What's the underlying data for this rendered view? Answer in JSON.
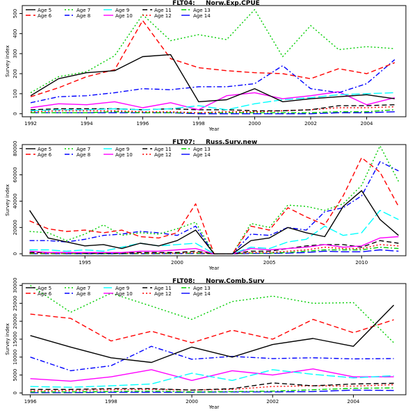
{
  "palette": {
    "Age 5": "#000000",
    "Age 6": "#ff0000",
    "Age 7": "#00cd00",
    "Age 8": "#0000ff",
    "Age 9": "#00ffff",
    "Age 10": "#ff00ff",
    "Age 11": "#000000",
    "Age 12": "#ff0000",
    "Age 13": "#00cd00",
    "Age 14": "#0000ff"
  },
  "chart_data": [
    {
      "type": "line",
      "fleet": "FLT04:",
      "name": "Norw.Exp.CPUE",
      "xlabel": "Year",
      "ylabel": "Survey index",
      "xlim": [
        1991.7,
        2005.4
      ],
      "ylim": [
        -15,
        540
      ],
      "xticks": [
        1992,
        1994,
        1996,
        1998,
        2000,
        2002,
        2004
      ],
      "yticks": [
        0,
        100,
        200,
        300,
        400,
        500
      ],
      "x": [
        1992,
        1993,
        1994,
        1995,
        1996,
        1997,
        1998,
        1999,
        2000,
        2001,
        2002,
        2003,
        2004,
        2005
      ],
      "series": [
        {
          "name": "Age 5",
          "values": [
            90,
            175,
            205,
            215,
            285,
            295,
            60,
            70,
            125,
            60,
            75,
            85,
            95,
            75
          ]
        },
        {
          "name": "Age 6",
          "values": [
            85,
            130,
            185,
            220,
            465,
            275,
            230,
            215,
            205,
            200,
            175,
            225,
            200,
            255
          ]
        },
        {
          "name": "Age 7",
          "values": [
            105,
            185,
            210,
            290,
            495,
            365,
            395,
            370,
            520,
            285,
            440,
            320,
            335,
            325
          ]
        },
        {
          "name": "Age 8",
          "values": [
            55,
            85,
            90,
            105,
            125,
            120,
            135,
            135,
            150,
            240,
            125,
            105,
            150,
            270
          ]
        },
        {
          "name": "Age 9",
          "values": [
            15,
            20,
            20,
            25,
            20,
            25,
            40,
            20,
            50,
            70,
            80,
            95,
            100,
            105
          ]
        },
        {
          "name": "Age 10",
          "values": [
            30,
            50,
            45,
            60,
            30,
            55,
            20,
            90,
            105,
            75,
            90,
            110,
            45,
            80
          ]
        },
        {
          "name": "Age 11",
          "values": [
            20,
            25,
            25,
            25,
            20,
            25,
            20,
            20,
            15,
            15,
            20,
            40,
            40,
            45
          ]
        },
        {
          "name": "Age 12",
          "values": [
            10,
            15,
            15,
            15,
            10,
            10,
            5,
            10,
            10,
            15,
            20,
            30,
            30,
            35
          ]
        },
        {
          "name": "Age 13",
          "values": [
            5,
            5,
            5,
            10,
            5,
            5,
            5,
            5,
            5,
            5,
            5,
            10,
            10,
            20
          ]
        },
        {
          "name": "Age 14",
          "values": [
            5,
            5,
            5,
            5,
            5,
            5,
            0,
            0,
            0,
            0,
            0,
            5,
            5,
            10
          ]
        }
      ]
    },
    {
      "type": "line",
      "fleet": "FLT07:",
      "name": "Russ.Surv.new",
      "xlabel": "Year",
      "ylabel": "Survey index",
      "xlim": [
        1991.6,
        2012.4
      ],
      "ylim": [
        -1500,
        83000
      ],
      "xticks": [
        1995,
        2000,
        2005,
        2010
      ],
      "yticks": [
        0,
        20000,
        40000,
        60000,
        80000
      ],
      "x": [
        1992,
        1993,
        1994,
        1995,
        1996,
        1997,
        1998,
        1999,
        2000,
        2001,
        2002,
        2003,
        2004,
        2005,
        2006,
        2007,
        2008,
        2009,
        2010,
        2011,
        2012
      ],
      "series": [
        {
          "name": "Age 5",
          "values": [
            33000,
            12000,
            9000,
            6000,
            7000,
            4000,
            8000,
            6000,
            10000,
            18000,
            0,
            0,
            10000,
            12000,
            20000,
            16000,
            13000,
            36000,
            48000,
            26000,
            14000
          ]
        },
        {
          "name": "Age 6",
          "values": [
            25000,
            19000,
            17000,
            18000,
            16000,
            18000,
            13000,
            12000,
            16000,
            38000,
            0,
            0,
            21000,
            18000,
            35000,
            28000,
            22000,
            44000,
            73000,
            62000,
            36000
          ]
        },
        {
          "name": "Age 7",
          "values": [
            17000,
            16000,
            10000,
            15000,
            22000,
            14000,
            16000,
            15000,
            19000,
            24000,
            0,
            0,
            23000,
            20000,
            37000,
            36000,
            33000,
            38000,
            52000,
            82000,
            55000
          ]
        },
        {
          "name": "Age 8",
          "values": [
            10000,
            10000,
            9000,
            11000,
            14000,
            15000,
            17000,
            16000,
            14000,
            21000,
            0,
            0,
            15000,
            14000,
            20000,
            18000,
            32000,
            35000,
            44000,
            70000,
            63000
          ]
        },
        {
          "name": "Age 9",
          "values": [
            3000,
            3000,
            2000,
            3000,
            2000,
            5000,
            8000,
            6000,
            7000,
            8000,
            0,
            0,
            5000,
            4000,
            9000,
            11000,
            21000,
            14000,
            16000,
            33000,
            26000
          ]
        },
        {
          "name": "Age 10",
          "values": [
            2000,
            1000,
            1000,
            1000,
            1000,
            1000,
            2000,
            2000,
            3000,
            4000,
            0,
            0,
            4000,
            3000,
            4000,
            5000,
            7000,
            5000,
            6000,
            12000,
            13000
          ]
        },
        {
          "name": "Age 11",
          "values": [
            1000,
            1000,
            1000,
            500,
            500,
            500,
            1000,
            1000,
            1000,
            2000,
            0,
            0,
            2000,
            2000,
            4000,
            6000,
            7000,
            7000,
            5000,
            10000,
            8000
          ]
        },
        {
          "name": "Age 12",
          "values": [
            500,
            500,
            500,
            500,
            500,
            500,
            500,
            500,
            500,
            1000,
            0,
            0,
            1000,
            1000,
            2000,
            3000,
            5000,
            4000,
            4000,
            7000,
            6000
          ]
        },
        {
          "name": "Age 13",
          "values": [
            200,
            200,
            200,
            200,
            200,
            200,
            200,
            200,
            300,
            500,
            0,
            0,
            500,
            500,
            1000,
            2000,
            3000,
            3000,
            3000,
            5000,
            4000
          ]
        },
        {
          "name": "Age 14",
          "values": [
            100,
            100,
            100,
            100,
            100,
            100,
            100,
            100,
            200,
            300,
            0,
            0,
            300,
            300,
            500,
            1000,
            2000,
            1500,
            1500,
            3000,
            2000
          ]
        }
      ]
    },
    {
      "type": "line",
      "fleet": "FLT08:",
      "name": "Norw.Comb.Surv",
      "xlabel": "Year",
      "ylabel": "Survey index",
      "xlim": [
        1995.8,
        2005.3
      ],
      "ylim": [
        -500,
        30500
      ],
      "xticks": [
        1996,
        1998,
        2000,
        2002,
        2004
      ],
      "yticks": [
        0,
        5000,
        10000,
        15000,
        20000,
        25000,
        30000
      ],
      "x": [
        1996,
        1997,
        1998,
        1999,
        2000,
        2001,
        2002,
        2003,
        2004,
        2005
      ],
      "series": [
        {
          "name": "Age 5",
          "values": [
            16000,
            12800,
            9800,
            8500,
            12800,
            10000,
            13500,
            15200,
            13000,
            24500
          ]
        },
        {
          "name": "Age 6",
          "values": [
            22000,
            20800,
            14500,
            17200,
            14000,
            17500,
            15000,
            20500,
            16800,
            20400
          ]
        },
        {
          "name": "Age 7",
          "values": [
            30000,
            22500,
            27800,
            24200,
            20500,
            25500,
            27000,
            25000,
            25200,
            14000
          ]
        },
        {
          "name": "Age 8",
          "values": [
            10000,
            6200,
            7600,
            13000,
            9400,
            10200,
            9600,
            9800,
            9500,
            9600
          ]
        },
        {
          "name": "Age 9",
          "values": [
            1800,
            1600,
            2000,
            2500,
            5500,
            3500,
            6500,
            5200,
            4200,
            4800
          ]
        },
        {
          "name": "Age 10",
          "values": [
            4000,
            3300,
            4500,
            6500,
            3500,
            6200,
            5000,
            6700,
            4500,
            4500
          ]
        },
        {
          "name": "Age 11",
          "values": [
            1000,
            1000,
            1200,
            1200,
            800,
            1200,
            2800,
            2000,
            2500,
            2700
          ]
        },
        {
          "name": "Age 12",
          "values": [
            600,
            700,
            900,
            1000,
            800,
            1000,
            1800,
            2000,
            1900,
            2300
          ]
        },
        {
          "name": "Age 13",
          "values": [
            300,
            300,
            400,
            500,
            300,
            400,
            500,
            900,
            1300,
            1400
          ]
        },
        {
          "name": "Age 14",
          "values": [
            100,
            100,
            200,
            200,
            200,
            300,
            300,
            400,
            800,
            700
          ]
        }
      ]
    }
  ]
}
